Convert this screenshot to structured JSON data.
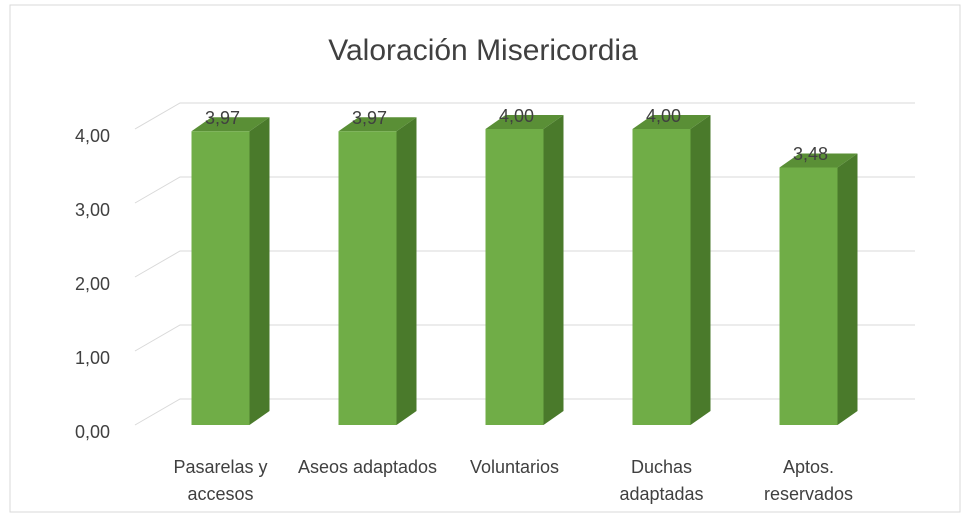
{
  "chart_data": {
    "type": "bar3d",
    "title": "Valoración Misericordia",
    "categories": [
      "Pasarelas y accesos",
      "Aseos adaptados",
      "Voluntarios",
      "Duchas adaptadas",
      "Aptos. reservados"
    ],
    "values": [
      3.97,
      3.97,
      4.0,
      4.0,
      3.48
    ],
    "value_labels": [
      "3,97",
      "3,97",
      "4,00",
      "4,00",
      "3,48"
    ],
    "color": "#70ad47",
    "ylim": [
      0,
      4
    ],
    "yticks": [
      {
        "value": 0,
        "label": "0,00"
      },
      {
        "value": 1,
        "label": "1,00"
      },
      {
        "value": 2,
        "label": "2,00"
      },
      {
        "value": 3,
        "label": "3,00"
      },
      {
        "value": 4,
        "label": "4,00"
      }
    ],
    "grid": true
  }
}
